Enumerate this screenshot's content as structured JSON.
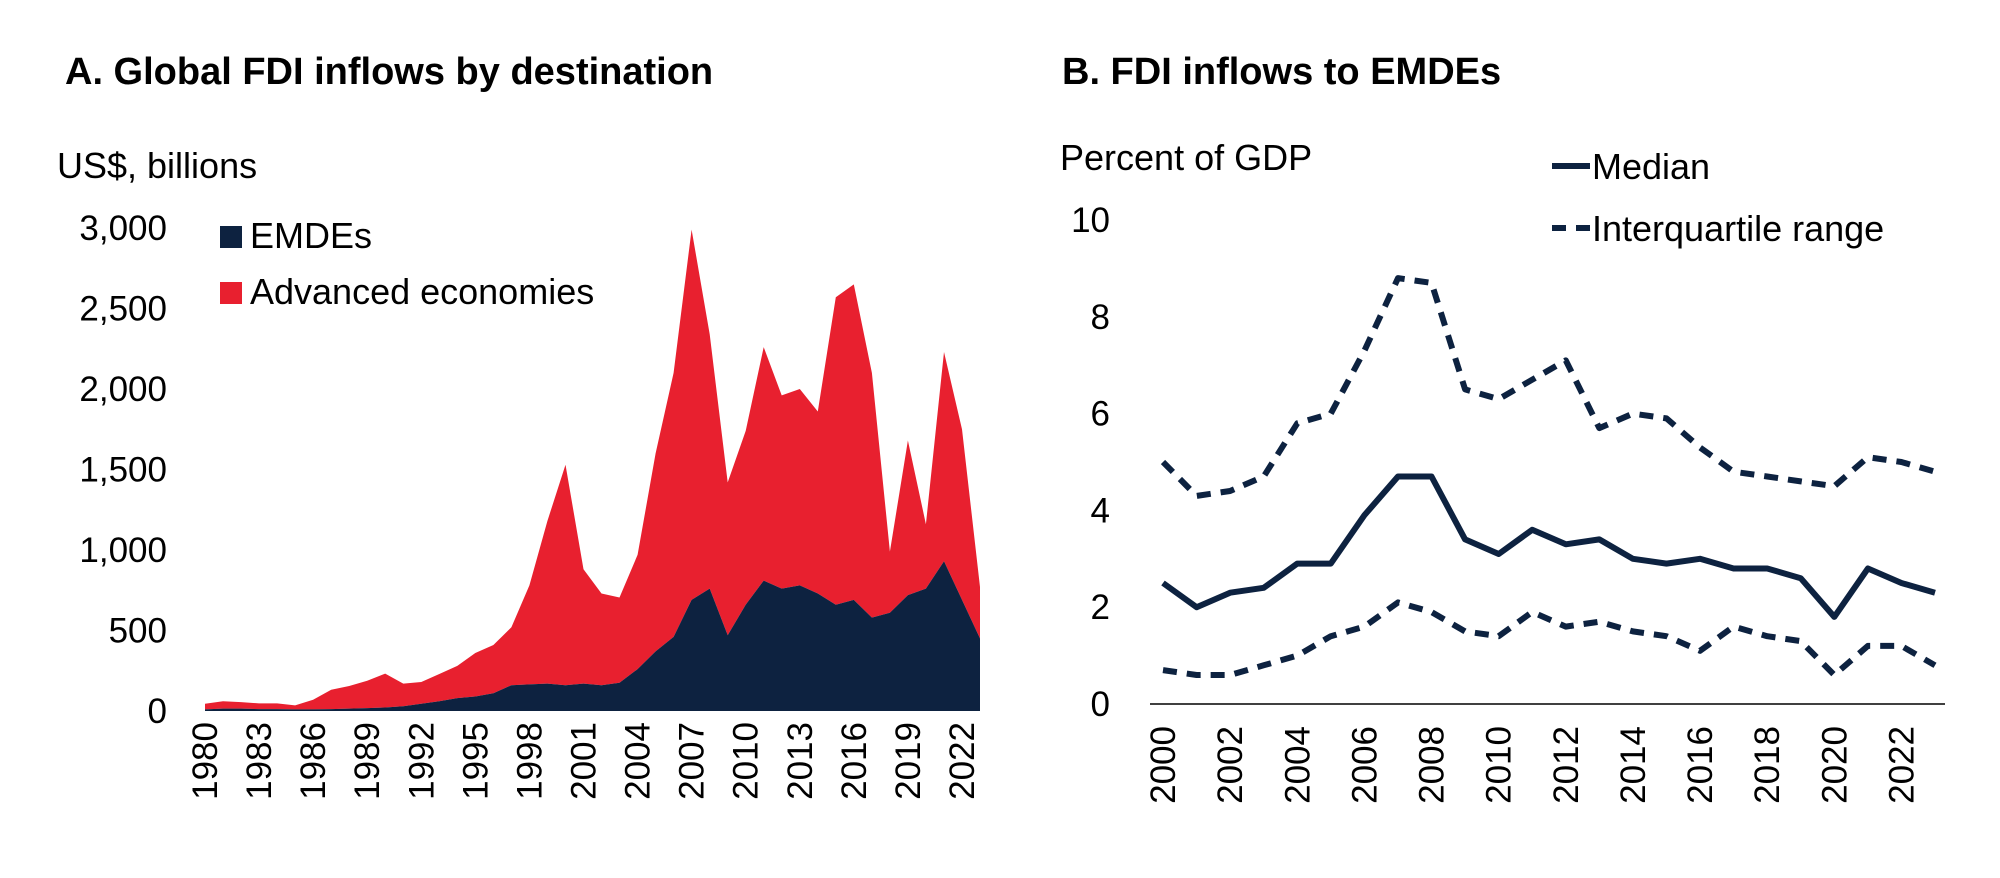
{
  "colors": {
    "emde": "#0d2240",
    "advanced": "#e8202f",
    "median": "#0d2240"
  },
  "chart_data": [
    {
      "type": "area",
      "stacked": true,
      "title": "A.  Global FDI inflows by destination",
      "ylabel": "US$, billions",
      "xlabel": "",
      "ylim": [
        0,
        3000
      ],
      "yticks": [
        0,
        500,
        1000,
        1500,
        2000,
        2500,
        3000
      ],
      "ytick_labels": [
        "0",
        "500",
        "1,000",
        "1,500",
        "2,000",
        "2,500",
        "3,000"
      ],
      "x": [
        1980,
        1981,
        1982,
        1983,
        1984,
        1985,
        1986,
        1987,
        1988,
        1989,
        1990,
        1991,
        1992,
        1993,
        1994,
        1995,
        1996,
        1997,
        1998,
        1999,
        2000,
        2001,
        2002,
        2003,
        2004,
        2005,
        2006,
        2007,
        2008,
        2009,
        2010,
        2011,
        2012,
        2013,
        2014,
        2015,
        2016,
        2017,
        2018,
        2019,
        2020,
        2021,
        2022,
        2023
      ],
      "xtick_labels": [
        "1980",
        "1983",
        "1986",
        "1989",
        "1992",
        "1995",
        "1998",
        "2001",
        "2004",
        "2007",
        "2010",
        "2013",
        "2016",
        "2019",
        "2022"
      ],
      "legend_position": "top-left",
      "series": [
        {
          "name": "EMDEs",
          "values": [
            10,
            15,
            15,
            12,
            12,
            10,
            10,
            12,
            15,
            18,
            22,
            30,
            45,
            60,
            80,
            90,
            110,
            160,
            165,
            170,
            160,
            170,
            160,
            175,
            260,
            370,
            460,
            690,
            760,
            470,
            660,
            810,
            760,
            780,
            730,
            660,
            690,
            580,
            610,
            720,
            760,
            930,
            690,
            450
          ]
        },
        {
          "name": "Advanced economies",
          "values": [
            35,
            45,
            40,
            35,
            35,
            25,
            60,
            120,
            140,
            170,
            210,
            140,
            135,
            170,
            200,
            270,
            300,
            360,
            615,
            1010,
            1370,
            710,
            570,
            530,
            710,
            1230,
            1640,
            2300,
            1580,
            950,
            1080,
            1450,
            1200,
            1220,
            1130,
            1910,
            1960,
            1520,
            380,
            960,
            400,
            1300,
            1060,
            320
          ]
        }
      ]
    },
    {
      "type": "line",
      "title": "B. FDI inflows to EMDEs",
      "ylabel": "Percent of GDP",
      "xlabel": "",
      "ylim": [
        0,
        10
      ],
      "yticks": [
        0,
        2,
        4,
        6,
        8,
        10
      ],
      "ytick_labels": [
        "0",
        "2",
        "4",
        "6",
        "8",
        "10"
      ],
      "x": [
        2000,
        2001,
        2002,
        2003,
        2004,
        2005,
        2006,
        2007,
        2008,
        2009,
        2010,
        2011,
        2012,
        2013,
        2014,
        2015,
        2016,
        2017,
        2018,
        2019,
        2020,
        2021,
        2022,
        2023
      ],
      "xtick_labels": [
        "2000",
        "2002",
        "2004",
        "2006",
        "2008",
        "2010",
        "2012",
        "2014",
        "2016",
        "2018",
        "2020",
        "2022"
      ],
      "legend_position": "top-right",
      "series": [
        {
          "name": "Median",
          "style": "solid",
          "values": [
            2.5,
            2.0,
            2.3,
            2.4,
            2.9,
            2.9,
            3.9,
            4.7,
            4.7,
            3.4,
            3.1,
            3.6,
            3.3,
            3.4,
            3.0,
            2.9,
            3.0,
            2.8,
            2.8,
            2.6,
            1.8,
            2.8,
            2.5,
            2.3
          ]
        },
        {
          "name": "Interquartile range",
          "style": "dashed",
          "values": [
            5.0,
            4.3,
            4.4,
            4.7,
            5.8,
            6.0,
            7.3,
            8.8,
            8.7,
            6.5,
            6.3,
            6.7,
            7.1,
            5.7,
            6.0,
            5.9,
            5.3,
            4.8,
            4.7,
            4.6,
            4.5,
            5.1,
            5.0,
            4.8
          ]
        },
        {
          "name": "Interquartile range (lower)",
          "style": "dashed",
          "legend": false,
          "values": [
            0.7,
            0.6,
            0.6,
            0.8,
            1.0,
            1.4,
            1.6,
            2.1,
            1.9,
            1.5,
            1.4,
            1.9,
            1.6,
            1.7,
            1.5,
            1.4,
            1.1,
            1.6,
            1.4,
            1.3,
            0.6,
            1.2,
            1.2,
            0.8
          ]
        }
      ]
    }
  ]
}
